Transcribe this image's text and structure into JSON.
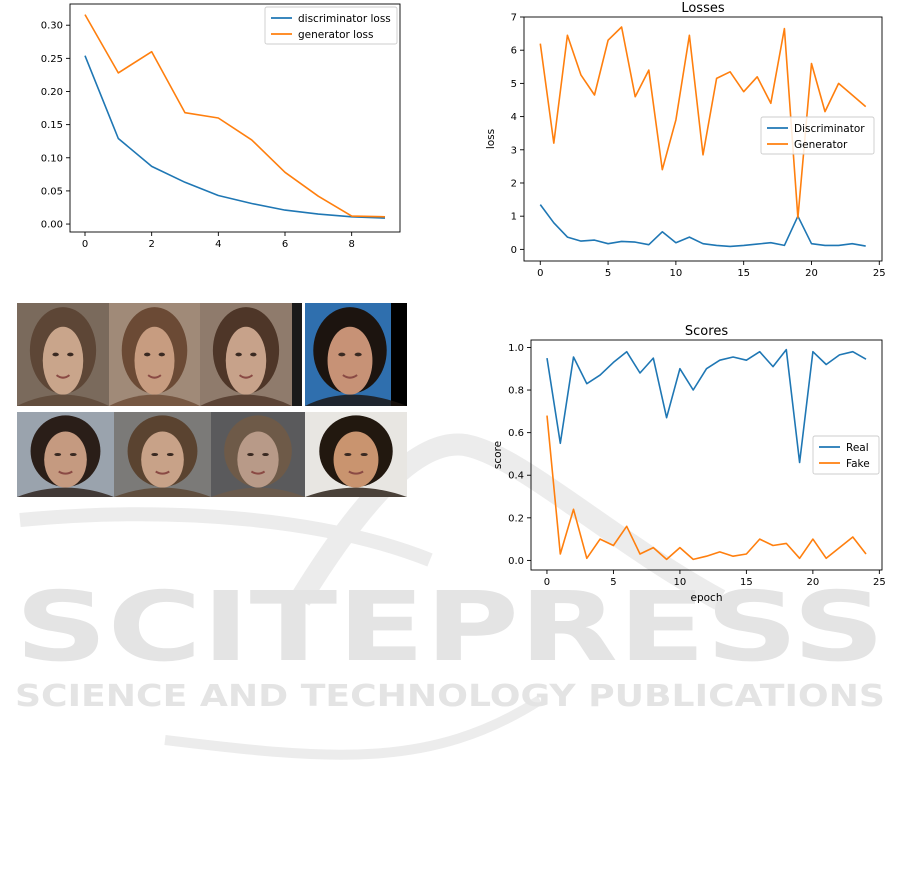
{
  "chart_data": [
    {
      "id": "chart1",
      "type": "line",
      "title": "",
      "xlabel": "",
      "ylabel": "",
      "xlim": [
        -0.45,
        9.45
      ],
      "ylim": [
        -0.012,
        0.332
      ],
      "xticks": [
        0,
        2,
        4,
        6,
        8
      ],
      "yticks": [
        0.0,
        0.05,
        0.1,
        0.15,
        0.2,
        0.25,
        0.3
      ],
      "ytick_labels": [
        "0.00",
        "0.05",
        "0.10",
        "0.15",
        "0.20",
        "0.25",
        "0.30"
      ],
      "legend_position": "top-right",
      "grid": false,
      "x": [
        0,
        1,
        2,
        3,
        4,
        5,
        6,
        7,
        8,
        9
      ],
      "series": [
        {
          "name": "discriminator loss",
          "color": "#1f77b4",
          "values": [
            0.254,
            0.129,
            0.087,
            0.063,
            0.043,
            0.031,
            0.021,
            0.015,
            0.011,
            0.009
          ]
        },
        {
          "name": "generator loss",
          "color": "#ff7f0e",
          "values": [
            0.316,
            0.228,
            0.26,
            0.168,
            0.16,
            0.127,
            0.078,
            0.042,
            0.012,
            0.011
          ]
        }
      ]
    },
    {
      "id": "chart2",
      "type": "line",
      "title": "Losses",
      "xlabel": "",
      "ylabel": "loss",
      "xlim": [
        -1.2,
        25.2
      ],
      "ylim": [
        -0.35,
        7.0
      ],
      "xticks": [
        0,
        5,
        10,
        15,
        20,
        25
      ],
      "yticks": [
        0,
        1,
        2,
        3,
        4,
        5,
        6,
        7
      ],
      "ytick_labels": [
        "0",
        "1",
        "2",
        "3",
        "4",
        "5",
        "6",
        "7"
      ],
      "legend_position": "center-right",
      "grid": false,
      "x": [
        0,
        1,
        2,
        3,
        4,
        5,
        6,
        7,
        8,
        9,
        10,
        11,
        12,
        13,
        14,
        15,
        16,
        17,
        18,
        19,
        20,
        21,
        22,
        23,
        24
      ],
      "series": [
        {
          "name": "Discriminator",
          "color": "#1f77b4",
          "values": [
            1.35,
            0.8,
            0.37,
            0.25,
            0.28,
            0.17,
            0.24,
            0.22,
            0.14,
            0.53,
            0.2,
            0.37,
            0.17,
            0.12,
            0.09,
            0.12,
            0.16,
            0.2,
            0.12,
            1.0,
            0.17,
            0.12,
            0.12,
            0.17,
            0.1
          ]
        },
        {
          "name": "Generator",
          "color": "#ff7f0e",
          "values": [
            6.2,
            3.2,
            6.45,
            5.25,
            4.65,
            6.3,
            6.7,
            4.6,
            5.4,
            2.4,
            3.9,
            6.45,
            2.85,
            5.15,
            5.35,
            4.75,
            5.2,
            4.4,
            6.65,
            0.95,
            5.6,
            4.15,
            5.0,
            4.65,
            4.3
          ]
        }
      ]
    },
    {
      "id": "chart3",
      "type": "line",
      "title": "Scores",
      "xlabel": "epoch",
      "ylabel": "score",
      "xlim": [
        -1.2,
        25.2
      ],
      "ylim": [
        -0.045,
        1.035
      ],
      "xticks": [
        0,
        5,
        10,
        15,
        20,
        25
      ],
      "yticks": [
        0.0,
        0.2,
        0.4,
        0.6,
        0.8,
        1.0
      ],
      "ytick_labels": [
        "0.0",
        "0.2",
        "0.4",
        "0.6",
        "0.8",
        "1.0"
      ],
      "legend_position": "center-right",
      "grid": false,
      "x": [
        0,
        1,
        2,
        3,
        4,
        5,
        6,
        7,
        8,
        9,
        10,
        11,
        12,
        13,
        14,
        15,
        16,
        17,
        18,
        19,
        20,
        21,
        22,
        23,
        24
      ],
      "series": [
        {
          "name": "Real",
          "color": "#1f77b4",
          "values": [
            0.95,
            0.55,
            0.955,
            0.83,
            0.87,
            0.93,
            0.98,
            0.88,
            0.95,
            0.67,
            0.9,
            0.8,
            0.9,
            0.94,
            0.955,
            0.94,
            0.98,
            0.91,
            0.99,
            0.46,
            0.98,
            0.92,
            0.965,
            0.98,
            0.945
          ]
        },
        {
          "name": "Fake",
          "color": "#ff7f0e",
          "values": [
            0.68,
            0.03,
            0.24,
            0.01,
            0.1,
            0.07,
            0.16,
            0.03,
            0.06,
            0.005,
            0.06,
            0.005,
            0.02,
            0.04,
            0.02,
            0.03,
            0.1,
            0.07,
            0.08,
            0.01,
            0.1,
            0.01,
            0.06,
            0.11,
            0.03
          ]
        }
      ]
    }
  ],
  "face_grid": {
    "rows": 2,
    "columns": 4,
    "tiles": [
      {
        "kind": "generated",
        "bg": "#7a6a5c",
        "skin": "#c9a58b",
        "hair": "#5d4636"
      },
      {
        "kind": "generated",
        "bg": "#a08a78",
        "skin": "#c79c80",
        "hair": "#6b4a35"
      },
      {
        "kind": "generated",
        "bg": "#8f7b6c",
        "skin": "#c7a28a",
        "hair": "#4e3628"
      },
      {
        "kind": "real",
        "bg": "#2f6fae",
        "skin": "#c79276",
        "hair": "#1c140f"
      },
      {
        "kind": "generated",
        "bg": "#9aa3ad",
        "skin": "#c59a80",
        "hair": "#2a1e18"
      },
      {
        "kind": "generated",
        "bg": "#7b7a78",
        "skin": "#c8a288",
        "hair": "#5a4330"
      },
      {
        "kind": "generated",
        "bg": "#5a5a5c",
        "skin": "#b89a88",
        "hair": "#6e5a48"
      },
      {
        "kind": "real",
        "bg": "#e8e6e2",
        "skin": "#c9946f",
        "hair": "#22180f"
      }
    ]
  },
  "watermark": {
    "text_big": "SCITEPRESS",
    "text_small": "SCIENCE AND TECHNOLOGY PUBLICATIONS",
    "color": "#e4e4e4"
  }
}
